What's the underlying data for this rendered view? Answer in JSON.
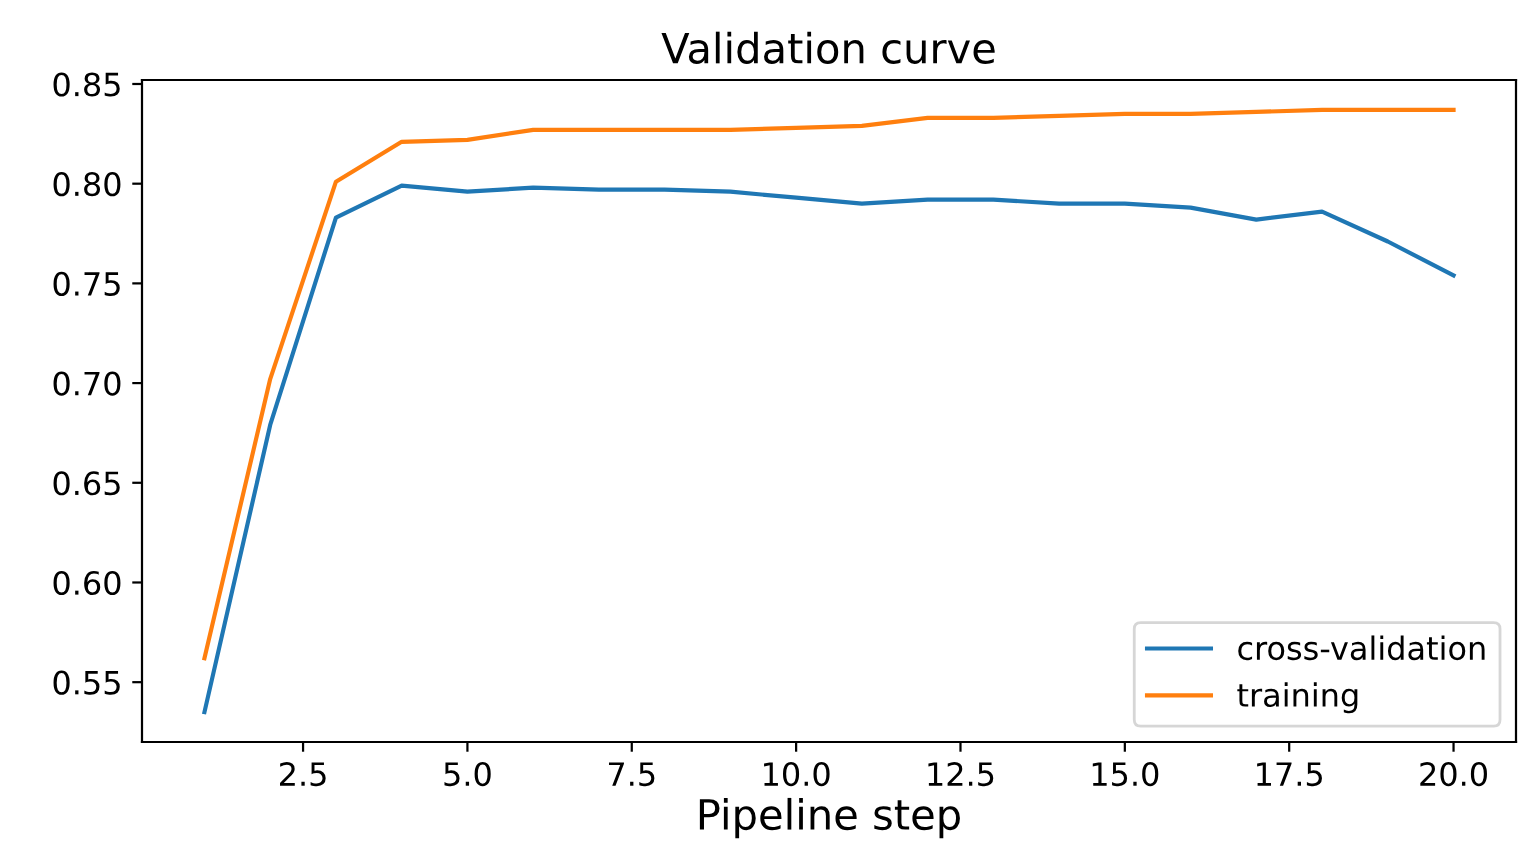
{
  "chart_data": {
    "type": "line",
    "title": "Validation curve",
    "xlabel": "Pipeline step",
    "x": [
      1,
      2,
      3,
      4,
      5,
      6,
      7,
      8,
      9,
      10,
      11,
      12,
      13,
      14,
      15,
      16,
      17,
      18,
      19,
      20
    ],
    "series": [
      {
        "name": "cross-validation",
        "color": "#1f77b4",
        "values": [
          0.535,
          0.679,
          0.783,
          0.799,
          0.796,
          0.798,
          0.797,
          0.797,
          0.796,
          0.793,
          0.79,
          0.792,
          0.792,
          0.79,
          0.79,
          0.788,
          0.782,
          0.786,
          0.771,
          0.754
        ]
      },
      {
        "name": "training",
        "color": "#ff7f0e",
        "values": [
          0.562,
          0.702,
          0.801,
          0.821,
          0.822,
          0.827,
          0.827,
          0.827,
          0.827,
          0.828,
          0.829,
          0.833,
          0.833,
          0.834,
          0.835,
          0.835,
          0.836,
          0.837,
          0.837,
          0.837
        ]
      }
    ],
    "xlim": [
      0.05,
      20.95
    ],
    "ylim": [
      0.52,
      0.852
    ],
    "xticks": [
      {
        "value": 2.5,
        "label": "2.5"
      },
      {
        "value": 5,
        "label": "5.0"
      },
      {
        "value": 7.5,
        "label": "7.5"
      },
      {
        "value": 10,
        "label": "10.0"
      },
      {
        "value": 12.5,
        "label": "12.5"
      },
      {
        "value": 15,
        "label": "15.0"
      },
      {
        "value": 17.5,
        "label": "17.5"
      },
      {
        "value": 20,
        "label": "20.0"
      }
    ],
    "yticks": [
      0.55,
      {
        "value": 0.6,
        "label": "0.60"
      },
      {
        "value": 0.65,
        "label": "0.65"
      },
      {
        "value": 0.7,
        "label": "0.70"
      },
      0.75,
      {
        "value": 0.8,
        "label": "0.80"
      },
      0.85
    ],
    "legend": "lower right",
    "grid": false
  }
}
